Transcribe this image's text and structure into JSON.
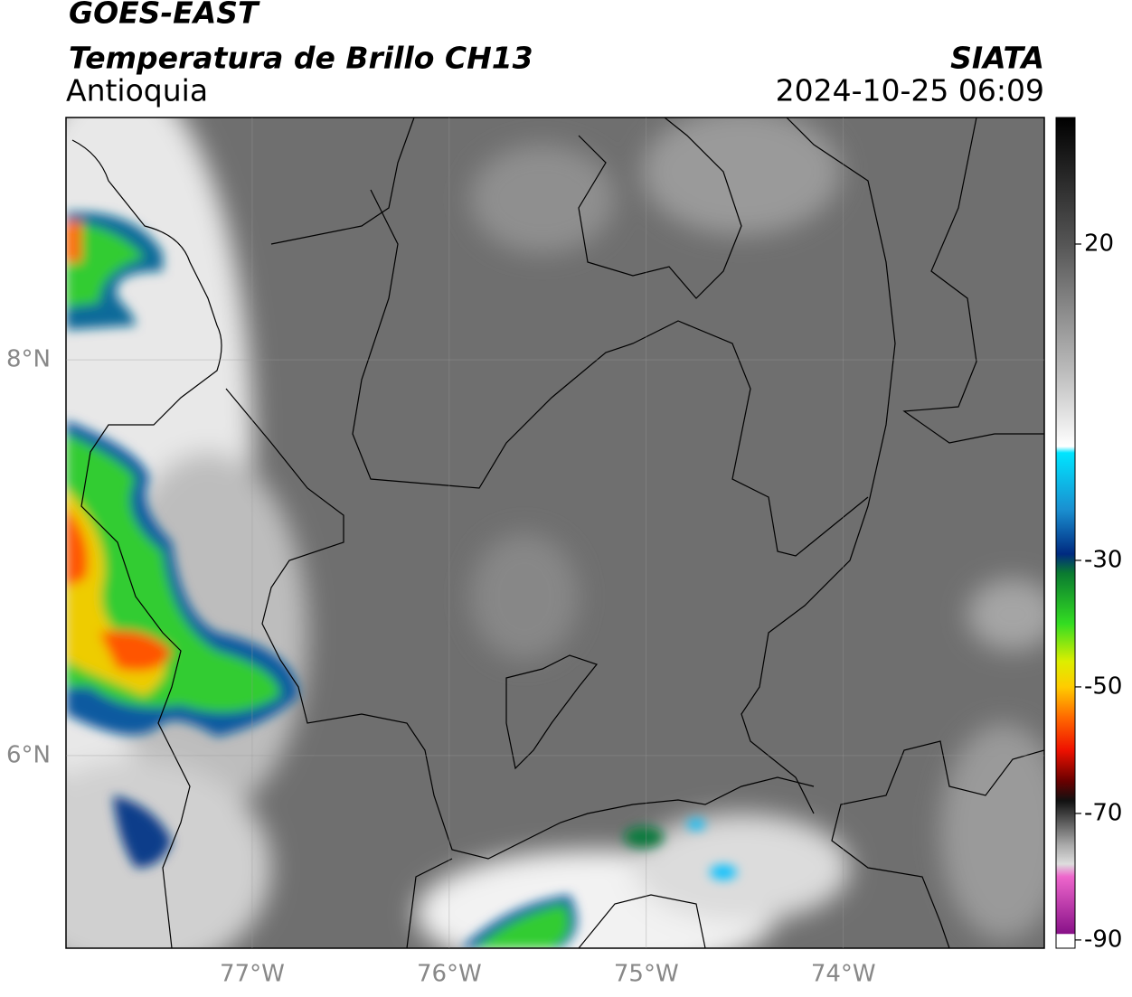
{
  "map": {
    "title": "GOES-EAST",
    "subtitle": "Temperatura de Brillo CH13",
    "region": "Antioquia",
    "source": "SIATA",
    "datetime": "2024-10-25 06:09",
    "lonlim": [
      -77.945,
      -72.98
    ],
    "latlim": [
      5.027,
      9.224
    ],
    "lonticks": [
      {
        "value": -77,
        "label": "77°W"
      },
      {
        "value": -76,
        "label": "76°W"
      },
      {
        "value": -75,
        "label": "75°W"
      },
      {
        "value": -74,
        "label": "74°W"
      }
    ],
    "latticks": [
      {
        "value": 8,
        "label": "8°N"
      },
      {
        "value": 6,
        "label": "6°N"
      }
    ],
    "grid": true,
    "colorbar": {
      "lim": [
        -91.3,
        40
      ],
      "ticks": [
        20,
        -30,
        -50,
        -70,
        -90
      ],
      "stops": [
        [
          40,
          "#000000"
        ],
        [
          20,
          "#555555"
        ],
        [
          0,
          "#bbbbbb"
        ],
        [
          -12,
          "#ffffff"
        ],
        [
          -13,
          "#00e5ff"
        ],
        [
          -22,
          "#1a8fd0"
        ],
        [
          -29,
          "#002a80"
        ],
        [
          -32,
          "#0a7a30"
        ],
        [
          -40,
          "#33dd22"
        ],
        [
          -46,
          "#ddee00"
        ],
        [
          -50,
          "#ffcc00"
        ],
        [
          -55,
          "#ff6600"
        ],
        [
          -60,
          "#ee1100"
        ],
        [
          -65,
          "#660000"
        ],
        [
          -68,
          "#111111"
        ],
        [
          -75,
          "#aaaaaa"
        ],
        [
          -78,
          "#dddddd"
        ],
        [
          -80,
          "#ee66cc"
        ],
        [
          -89,
          "#881188"
        ],
        [
          -89.1,
          "#ffffff"
        ]
      ]
    }
  }
}
